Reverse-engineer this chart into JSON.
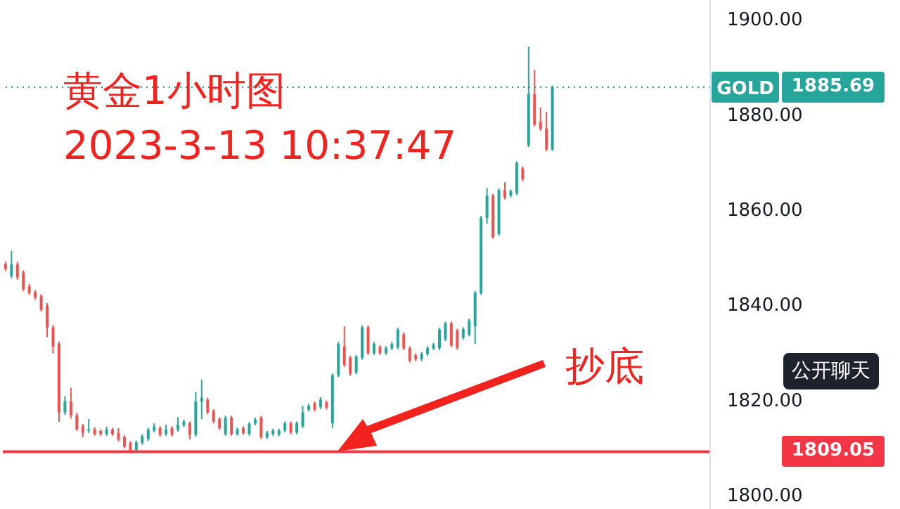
{
  "chart_data": {
    "type": "candlestick",
    "title": "黄金1小时图",
    "subtitle": "2023-3-13 10:37:47",
    "annotations": [
      "抄底",
      "公开聊天",
      "1885.69",
      "1809.05"
    ],
    "categories": [
      null,
      null,
      null,
      null,
      null,
      null,
      null,
      null,
      null,
      null,
      null,
      null,
      null,
      null,
      null,
      null,
      null,
      null,
      null,
      null,
      null,
      null,
      null,
      null,
      null,
      null,
      null,
      null,
      null,
      null,
      null,
      null,
      null,
      null,
      null,
      null,
      null,
      null,
      null,
      null,
      null,
      null,
      null,
      null,
      null,
      null,
      null,
      null,
      null,
      null,
      null,
      null,
      null,
      null,
      null,
      null,
      null,
      null,
      null,
      null,
      null,
      null,
      null,
      null,
      null,
      null,
      null,
      null,
      null,
      null,
      null,
      null,
      null,
      null,
      null,
      null,
      null,
      null,
      null,
      null,
      null,
      null,
      null,
      null,
      null,
      null,
      null,
      null,
      null,
      null,
      null,
      null,
      null,
      null,
      null,
      null,
      null,
      null,
      null,
      null,
      null,
      null,
      null,
      null,
      null,
      null,
      null,
      null,
      null,
      null,
      null,
      null,
      null,
      null,
      null,
      null,
      null,
      null,
      null
    ],
    "ohlc": [
      [
        1848.5,
        1849,
        1847,
        1847.5
      ],
      [
        1846,
        1851.3,
        1845.5,
        1848.4
      ],
      [
        1848.4,
        1849,
        1845.2,
        1845.7
      ],
      [
        1846.7,
        1847.2,
        1842.8,
        1843.2
      ],
      [
        1843.8,
        1844.3,
        1842,
        1842.4
      ],
      [
        1842.6,
        1843,
        1841,
        1841.5
      ],
      [
        1841.8,
        1842.2,
        1838.5,
        1838.9
      ],
      [
        1839.8,
        1840.3,
        1833.1,
        1835.2
      ],
      [
        1835.2,
        1835.7,
        1829.7,
        1831.1
      ],
      [
        1831.7,
        1832.2,
        1815.3,
        1817.3
      ],
      [
        1817.3,
        1820.7,
        1816.8,
        1819.6
      ],
      [
        1819.6,
        1822.5,
        1816,
        1816.7
      ],
      [
        1816.7,
        1817.2,
        1813.4,
        1813.8
      ],
      [
        1814.4,
        1814.9,
        1812.1,
        1813
      ],
      [
        1813.5,
        1815.9,
        1813,
        1813.8
      ],
      [
        1813.7,
        1814.2,
        1812.4,
        1812.8
      ],
      [
        1813.4,
        1813.8,
        1812.4,
        1812.8
      ],
      [
        1812.8,
        1814.3,
        1812.4,
        1813.7
      ],
      [
        1813.7,
        1814.1,
        1812.4,
        1812.8
      ],
      [
        1813,
        1814,
        1811.2,
        1811.6
      ],
      [
        1812.1,
        1812.5,
        1809.7,
        1810.1
      ],
      [
        1810.9,
        1811.3,
        1809,
        1809.2
      ],
      [
        1809.4,
        1811.4,
        1809,
        1811
      ],
      [
        1810.9,
        1812.7,
        1810.5,
        1812.3
      ],
      [
        1811.7,
        1814.1,
        1811.3,
        1813.7
      ],
      [
        1813.5,
        1815,
        1813.1,
        1814.3
      ],
      [
        1814,
        1814.4,
        1812.2,
        1812.6
      ],
      [
        1812.8,
        1814.7,
        1812.4,
        1813.7
      ],
      [
        1814,
        1814.4,
        1812.2,
        1812.6
      ],
      [
        1813.7,
        1816.3,
        1813.3,
        1814.7
      ],
      [
        1814.6,
        1815.8,
        1814.2,
        1815.4
      ],
      [
        1815,
        1815.4,
        1811.6,
        1812.6
      ],
      [
        1812.6,
        1821.6,
        1812.2,
        1819.6
      ],
      [
        1819.6,
        1824.2,
        1815.9,
        1820.4
      ],
      [
        1820,
        1820.4,
        1816.9,
        1817.3
      ],
      [
        1817.6,
        1818,
        1815,
        1815.4
      ],
      [
        1815.9,
        1816.3,
        1813.6,
        1814
      ],
      [
        1812.8,
        1816.6,
        1812.4,
        1816.2
      ],
      [
        1816.2,
        1816.6,
        1812.4,
        1812.8
      ],
      [
        1812.8,
        1814.1,
        1812.4,
        1813.7
      ],
      [
        1814,
        1814.4,
        1812.6,
        1813
      ],
      [
        1812.8,
        1815.3,
        1812.4,
        1814.9
      ],
      [
        1815,
        1816.2,
        1814.6,
        1815.8
      ],
      [
        1816.2,
        1816.6,
        1811.7,
        1812.1
      ],
      [
        1812.1,
        1813.4,
        1811.7,
        1813
      ],
      [
        1812.8,
        1813.9,
        1812.4,
        1813.5
      ],
      [
        1812.7,
        1813.9,
        1812.3,
        1813.5
      ],
      [
        1813.5,
        1815.4,
        1813.1,
        1815
      ],
      [
        1815,
        1815.4,
        1812.7,
        1813.1
      ],
      [
        1813.1,
        1815.4,
        1812.7,
        1815
      ],
      [
        1814.4,
        1818.7,
        1814,
        1817.3
      ],
      [
        1817.9,
        1819.1,
        1817.5,
        1818.7
      ],
      [
        1819.2,
        1819.6,
        1817.5,
        1817.9
      ],
      [
        1818.4,
        1820.5,
        1818,
        1820
      ],
      [
        1819.4,
        1819.8,
        1817.9,
        1818.3
      ],
      [
        1815,
        1825.5,
        1814,
        1825.1
      ],
      [
        1825.1,
        1832.1,
        1824.7,
        1831.7
      ],
      [
        1831.2,
        1835.4,
        1826.9,
        1827.3
      ],
      [
        1828.8,
        1829.2,
        1825,
        1825.4
      ],
      [
        1825.7,
        1829.4,
        1825.3,
        1829
      ],
      [
        1828.8,
        1835.6,
        1828.4,
        1835.2
      ],
      [
        1835.2,
        1835.6,
        1829.4,
        1829.8
      ],
      [
        1829.8,
        1832.1,
        1829.4,
        1831.7
      ],
      [
        1831,
        1831.4,
        1829.4,
        1829.8
      ],
      [
        1829.8,
        1831.2,
        1829.4,
        1830.8
      ],
      [
        1830.8,
        1832.1,
        1830.4,
        1831.7
      ],
      [
        1831,
        1835.1,
        1830.6,
        1834.7
      ],
      [
        1833.7,
        1834.1,
        1830.4,
        1830.8
      ],
      [
        1830.8,
        1831.2,
        1827.8,
        1828.2
      ],
      [
        1829.3,
        1829.7,
        1828.1,
        1828.5
      ],
      [
        1828.5,
        1830,
        1828.1,
        1829.6
      ],
      [
        1829.6,
        1831.2,
        1829.2,
        1830.8
      ],
      [
        1830.8,
        1831.9,
        1830.4,
        1831.5
      ],
      [
        1830.8,
        1835.1,
        1830.4,
        1834.7
      ],
      [
        1832.7,
        1836.4,
        1832.3,
        1836
      ],
      [
        1836,
        1836.4,
        1831,
        1831.4
      ],
      [
        1834.5,
        1834.9,
        1830.5,
        1830.9
      ],
      [
        1833,
        1835.2,
        1832.6,
        1834.8
      ],
      [
        1833.7,
        1837,
        1833.3,
        1836.6
      ],
      [
        1835.4,
        1842.8,
        1831.7,
        1842.4
      ],
      [
        1842.4,
        1858.6,
        1842,
        1858.2
      ],
      [
        1858.2,
        1864.5,
        1857,
        1862.8
      ],
      [
        1862.8,
        1863.2,
        1853.8,
        1854.2
      ],
      [
        1854.8,
        1864.4,
        1854.4,
        1864
      ],
      [
        1864,
        1865.7,
        1862.1,
        1862.5
      ],
      [
        1862.9,
        1864.2,
        1862.5,
        1863.8
      ],
      [
        1863.4,
        1870.1,
        1863,
        1869.7
      ],
      [
        1868.6,
        1869,
        1865.9,
        1866.3
      ],
      [
        1873.5,
        1894.2,
        1873.1,
        1884.2
      ],
      [
        1884.2,
        1889.3,
        1877.4,
        1877.8
      ],
      [
        1878.4,
        1881.4,
        1876.5,
        1876.9
      ],
      [
        1877,
        1880.5,
        1872.2,
        1872.6
      ],
      [
        1872.6,
        1886,
        1872.2,
        1885.69
      ],
      null,
      null,
      null,
      null,
      null,
      null,
      null,
      null,
      null,
      null,
      null,
      null,
      null,
      null,
      null,
      null,
      null,
      null,
      null,
      null,
      null,
      null,
      null,
      null,
      null,
      null
    ],
    "colors": [
      "#ef5350",
      "#26a69a",
      "#ef5350",
      "#ef5350",
      "#ef5350",
      "#ef5350",
      "#ef5350",
      "#ef5350",
      "#ef5350",
      "#ef5350",
      "#26a69a",
      "#ef5350",
      "#ef5350",
      "#ef5350",
      "#26a69a",
      "#ef5350",
      "#ef5350",
      "#26a69a",
      "#ef5350",
      "#ef5350",
      "#ef5350",
      "#ef5350",
      "#26a69a",
      "#26a69a",
      "#26a69a",
      "#26a69a",
      "#ef5350",
      "#26a69a",
      "#ef5350",
      "#26a69a",
      "#26a69a",
      "#ef5350",
      "#26a69a",
      "#26a69a",
      "#ef5350",
      "#ef5350",
      "#ef5350",
      "#26a69a",
      "#ef5350",
      "#26a69a",
      "#ef5350",
      "#26a69a",
      "#26a69a",
      "#ef5350",
      "#26a69a",
      "#26a69a",
      "#26a69a",
      "#26a69a",
      "#ef5350",
      "#26a69a",
      "#26a69a",
      "#26a69a",
      "#ef5350",
      "#26a69a",
      "#ef5350",
      "#26a69a",
      "#26a69a",
      "#ef5350",
      "#ef5350",
      "#26a69a",
      "#26a69a",
      "#ef5350",
      "#26a69a",
      "#ef5350",
      "#26a69a",
      "#26a69a",
      "#26a69a",
      "#ef5350",
      "#ef5350",
      "#ef5350",
      "#26a69a",
      "#26a69a",
      "#26a69a",
      "#26a69a",
      "#26a69a",
      "#ef5350",
      "#ef5350",
      "#26a69a",
      "#26a69a",
      "#26a69a",
      "#26a69a",
      "#26a69a",
      "#ef5350",
      "#26a69a",
      "#ef5350",
      "#26a69a",
      "#26a69a",
      "#ef5350",
      "#26a69a",
      "#ef5350",
      "#ef5350",
      "#ef5350",
      "#26a69a",
      null,
      null,
      null,
      null,
      null,
      null,
      null,
      null,
      null,
      null,
      null,
      null,
      null,
      null,
      null,
      null,
      null,
      null,
      null,
      null,
      null,
      null,
      null,
      null,
      null,
      null
    ],
    "ylim": [
      1797,
      1904
    ],
    "yticks": [
      {
        "value": 1800,
        "label": "1800.00"
      },
      {
        "value": 1820,
        "label": "1820.00"
      },
      {
        "value": 1840,
        "label": "1840.00"
      },
      {
        "value": 1860,
        "label": "1860.00"
      },
      {
        "value": 1880,
        "label": "1880.00"
      },
      {
        "value": 1900,
        "label": "1900.00"
      }
    ],
    "tick_labels": "y",
    "ref_lines": [
      {
        "axis": "y",
        "value": 1885.69,
        "label": "GOLD",
        "color": "#26a69a",
        "line_style": "dotted"
      },
      {
        "axis": "y",
        "value": 1809.05,
        "label": null,
        "color": "#f23645",
        "line_style": "solid"
      }
    ]
  }
}
